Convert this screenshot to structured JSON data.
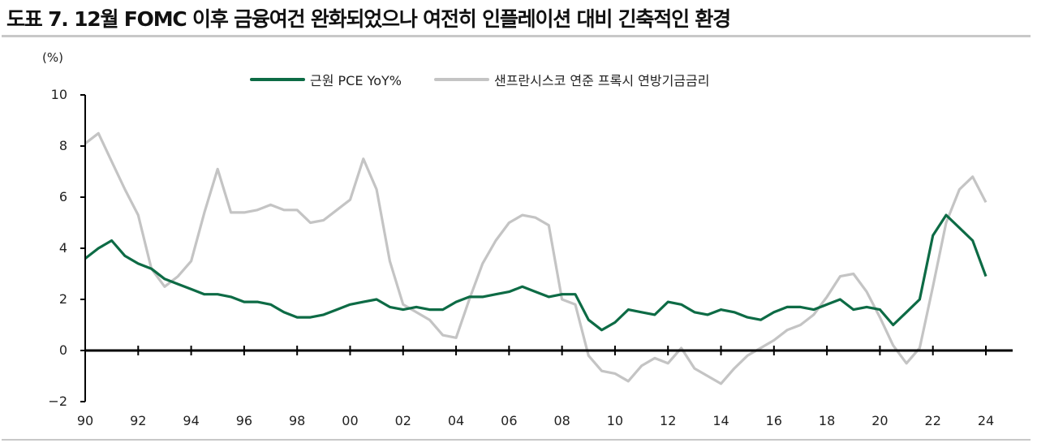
{
  "title": "도표 7. 12월 FOMC 이후 금융여건 완화되었으나 여전히 인플레이션 대비 긴축적인 환경",
  "unit_label": "(%)",
  "legend": [
    {
      "label": "근원 PCE YoY%",
      "color": "#0d6b45"
    },
    {
      "label": "샌프란시스코 연준 프록시 연방기금금리",
      "color": "#c4c4c4"
    }
  ],
  "y_ticks": [
    "10",
    "8",
    "6",
    "4",
    "2",
    "0",
    "−2"
  ],
  "x_ticks": [
    "90",
    "92",
    "94",
    "96",
    "98",
    "00",
    "02",
    "04",
    "06",
    "08",
    "10",
    "12",
    "14",
    "16",
    "18",
    "20",
    "22",
    "24"
  ],
  "chart_data": {
    "type": "line",
    "title": "도표 7. 12월 FOMC 이후 금융여건 완화되었으나 여전히 인플레이션 대비 긴축적인 환경",
    "xlabel": "",
    "ylabel": "(%)",
    "ylim": [
      -2,
      10
    ],
    "xlim": [
      1990,
      2024
    ],
    "grid": false,
    "legend_position": "top",
    "x": [
      1990.0,
      1990.5,
      1991.0,
      1991.5,
      1992.0,
      1992.5,
      1993.0,
      1993.5,
      1994.0,
      1994.5,
      1995.0,
      1995.5,
      1996.0,
      1996.5,
      1997.0,
      1997.5,
      1998.0,
      1998.5,
      1999.0,
      1999.5,
      2000.0,
      2000.5,
      2001.0,
      2001.5,
      2002.0,
      2002.5,
      2003.0,
      2003.5,
      2004.0,
      2004.5,
      2005.0,
      2005.5,
      2006.0,
      2006.5,
      2007.0,
      2007.5,
      2008.0,
      2008.5,
      2009.0,
      2009.5,
      2010.0,
      2010.5,
      2011.0,
      2011.5,
      2012.0,
      2012.5,
      2013.0,
      2013.5,
      2014.0,
      2014.5,
      2015.0,
      2015.5,
      2016.0,
      2016.5,
      2017.0,
      2017.5,
      2018.0,
      2018.5,
      2019.0,
      2019.5,
      2020.0,
      2020.5,
      2021.0,
      2021.5,
      2022.0,
      2022.5,
      2023.0,
      2023.5,
      2024.0
    ],
    "series": [
      {
        "name": "근원 PCE YoY%",
        "color": "#0d6b45",
        "values": [
          3.6,
          4.0,
          4.3,
          3.7,
          3.4,
          3.2,
          2.8,
          2.6,
          2.4,
          2.2,
          2.2,
          2.1,
          1.9,
          1.9,
          1.8,
          1.5,
          1.3,
          1.3,
          1.4,
          1.6,
          1.8,
          1.9,
          2.0,
          1.7,
          1.6,
          1.7,
          1.6,
          1.6,
          1.9,
          2.1,
          2.1,
          2.2,
          2.3,
          2.5,
          2.3,
          2.1,
          2.2,
          2.2,
          1.2,
          0.8,
          1.1,
          1.6,
          1.5,
          1.4,
          1.9,
          1.8,
          1.5,
          1.4,
          1.6,
          1.5,
          1.3,
          1.2,
          1.5,
          1.7,
          1.7,
          1.6,
          1.8,
          2.0,
          1.6,
          1.7,
          1.6,
          1.0,
          1.5,
          2.0,
          4.5,
          5.3,
          4.8,
          4.3,
          2.9
        ]
      },
      {
        "name": "샌프란시스코 연준 프록시 연방기금금리",
        "color": "#c4c4c4",
        "values": [
          8.1,
          8.5,
          7.4,
          6.3,
          5.3,
          3.2,
          2.5,
          2.9,
          3.5,
          5.4,
          7.1,
          5.4,
          5.4,
          5.5,
          5.7,
          5.5,
          5.5,
          5.0,
          5.1,
          5.5,
          5.9,
          7.5,
          6.3,
          3.5,
          1.8,
          1.5,
          1.2,
          0.6,
          0.5,
          2.0,
          3.4,
          4.3,
          5.0,
          5.3,
          5.2,
          4.9,
          2.0,
          1.8,
          -0.2,
          -0.8,
          -0.9,
          -1.2,
          -0.6,
          -0.3,
          -0.5,
          0.1,
          -0.7,
          -1.0,
          -1.3,
          -0.7,
          -0.2,
          0.1,
          0.4,
          0.8,
          1.0,
          1.4,
          2.1,
          2.9,
          3.0,
          2.3,
          1.3,
          0.2,
          -0.5,
          0.1,
          2.5,
          5.0,
          6.3,
          6.8,
          5.8
        ]
      }
    ]
  }
}
